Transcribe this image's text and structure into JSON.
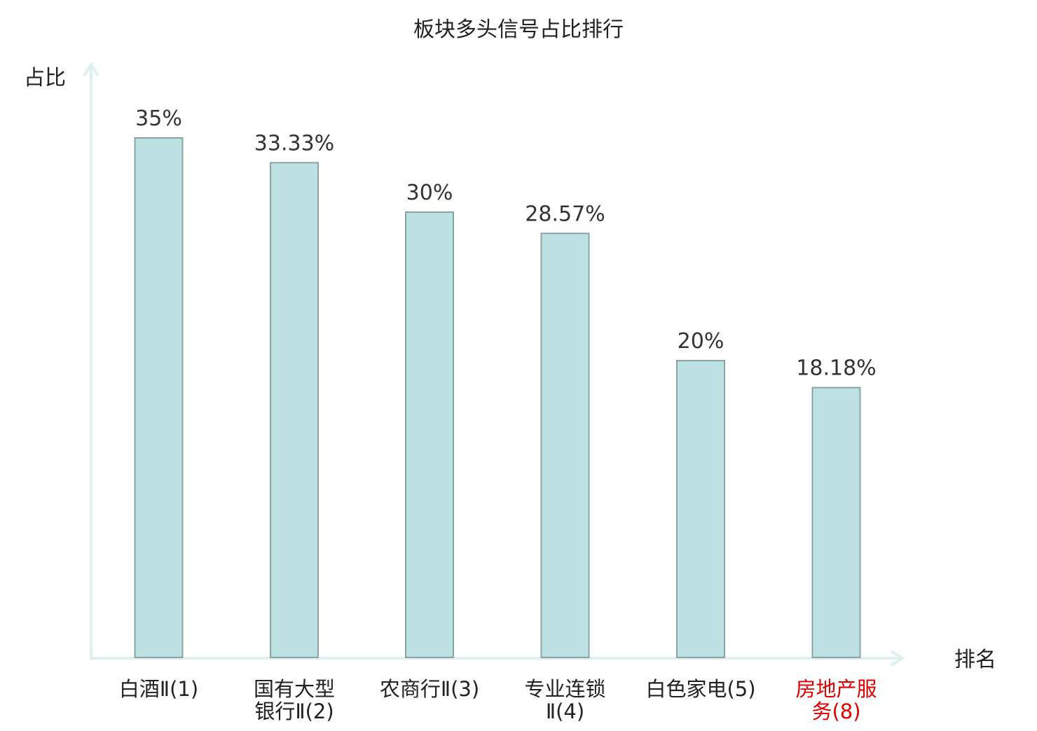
{
  "chart_data": {
    "type": "bar",
    "title": "板块多头信号占比排行",
    "ylabel": "占比",
    "xlabel": "排名",
    "ylim": [
      0,
      40
    ],
    "grid": false,
    "categories": [
      [
        "白酒Ⅱ(1)"
      ],
      [
        "国有大型",
        "银行Ⅱ(2)"
      ],
      [
        "农商行Ⅱ(3)"
      ],
      [
        "专业连锁",
        "Ⅱ(4)"
      ],
      [
        "白色家电(5)"
      ],
      [
        "房地产服",
        "务(8)"
      ]
    ],
    "values": [
      35,
      33.33,
      30,
      28.57,
      20,
      18.18
    ],
    "value_labels": [
      "35%",
      "33.33%",
      "30%",
      "28.57%",
      "20%",
      "18.18%"
    ],
    "highlight_index": 5,
    "colors": {
      "bar_fill": "#bde0e3",
      "bar_stroke": "#8aa4a6",
      "axis": "#dff1ef",
      "text": "#222222",
      "value_text": "#333333",
      "highlight_text": "#e00000"
    }
  }
}
